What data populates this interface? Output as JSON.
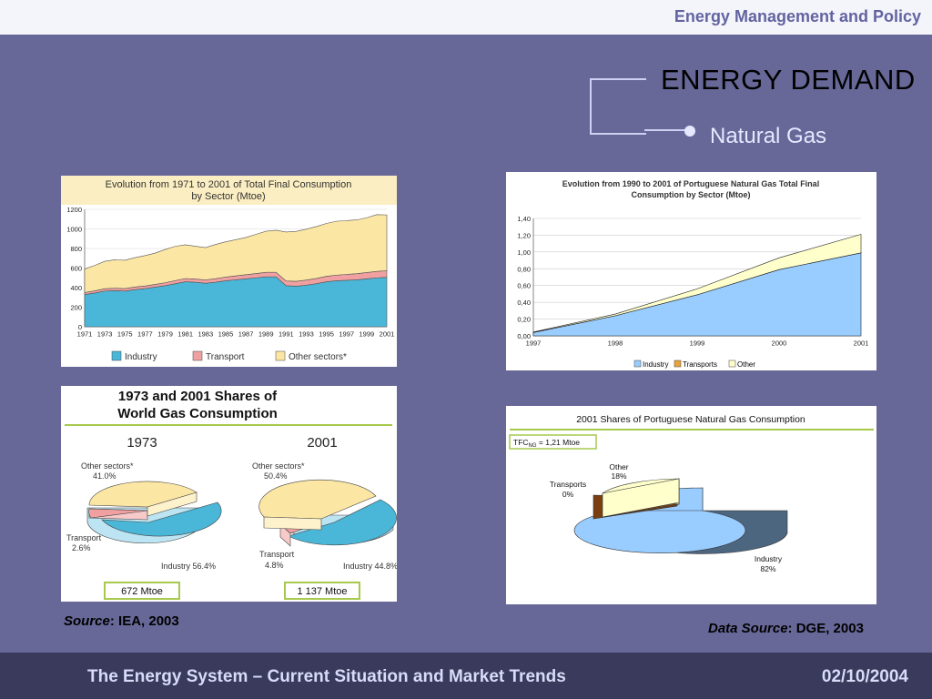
{
  "header": {
    "title": "Energy Management and Policy"
  },
  "slide": {
    "heading": "ENERGY DEMAND",
    "subheading": "Natural Gas"
  },
  "chart1": {
    "title_line1": "Evolution from 1971 to 2001 of  Total Final Consumption",
    "title_line2": "by Sector (Mtoe)",
    "legend": [
      "Industry",
      "Transport",
      "Other sectors*"
    ]
  },
  "chart2": {
    "title_line1": "Evolution from 1990 to 2001 of Portuguese Natural Gas Total Final",
    "title_line2": "Consumption by Sector (Mtoe)",
    "legend": [
      "Industry",
      "Transports",
      "Other"
    ]
  },
  "chart3": {
    "title_line1": "1973 and 2001 Shares of",
    "title_line2": "World Gas Consumption",
    "year_a": "1973",
    "year_b": "2001",
    "a_other": "Other sectors*",
    "a_other_val": "41.0%",
    "a_transport": "Transport",
    "a_transport_val": "2.6%",
    "a_industry": "Industry 56.4%",
    "b_other": "Other sectors*",
    "b_other_val": "50.4%",
    "b_transport": "Transport",
    "b_transport_val": "4.8%",
    "b_industry": "Industry 44.8%",
    "total_a": "672 Mtoe",
    "total_b": "1 137 Mtoe"
  },
  "chart4": {
    "title": "2001  Shares of Portuguese Natural Gas Consumption",
    "tfc_prefix": "TFC",
    "tfc_sub": "NG",
    "tfc_value": " = 1,21 Mtoe",
    "other_label": "Other",
    "other_val": "18%",
    "transports_label": "Transports",
    "transports_val": "0%",
    "industry_label": "Industry",
    "industry_val": "82%"
  },
  "sources": {
    "left_italic": "Source",
    "left_text": ": IEA, 2003",
    "right_italic": "Data Source",
    "right_text": ": DGE, 2003"
  },
  "footer": {
    "left": "The Energy System – Current Situation and Market Trends",
    "right": "02/10/2004"
  },
  "chart_data": [
    {
      "type": "area",
      "title": "Evolution from 1971 to 2001 of  Total Final Consumption by Sector (Mtoe)",
      "x": [
        1971,
        1972,
        1973,
        1974,
        1975,
        1976,
        1977,
        1978,
        1979,
        1980,
        1981,
        1982,
        1983,
        1984,
        1985,
        1986,
        1987,
        1988,
        1989,
        1990,
        1991,
        1992,
        1993,
        1994,
        1995,
        1996,
        1997,
        1998,
        1999,
        2000,
        2001
      ],
      "x_ticks": [
        "1971",
        "1973",
        "1975",
        "1977",
        "1979",
        "1981",
        "1983",
        "1985",
        "1987",
        "1989",
        "1991",
        "1993",
        "1995",
        "1997",
        "1999",
        "2001"
      ],
      "ylim": [
        0,
        1200
      ],
      "y_ticks": [
        "0",
        "200",
        "400",
        "600",
        "800",
        "1000",
        "1200"
      ],
      "series": [
        {
          "name": "Industry",
          "values": [
            330,
            345,
            365,
            370,
            365,
            380,
            390,
            405,
            420,
            440,
            460,
            455,
            445,
            455,
            470,
            480,
            490,
            500,
            510,
            510,
            420,
            415,
            425,
            440,
            460,
            470,
            475,
            480,
            490,
            500,
            505
          ]
        },
        {
          "name": "Transport",
          "values": [
            20,
            22,
            24,
            24,
            25,
            26,
            27,
            28,
            30,
            32,
            33,
            33,
            34,
            36,
            38,
            40,
            42,
            44,
            46,
            47,
            48,
            50,
            52,
            54,
            56,
            58,
            60,
            62,
            64,
            66,
            68
          ]
        },
        {
          "name": "Other sectors*",
          "values": [
            240,
            260,
            280,
            290,
            290,
            300,
            310,
            320,
            340,
            350,
            345,
            335,
            330,
            350,
            360,
            370,
            380,
            400,
            420,
            430,
            500,
            510,
            520,
            530,
            540,
            550,
            550,
            550,
            560,
            580,
            570
          ]
        }
      ],
      "colors": [
        "#4ab6d8",
        "#f0a0a0",
        "#fbe6a4"
      ]
    },
    {
      "type": "area",
      "title": "Evolution from 1990 to 2001 of Portuguese Natural Gas Total Final Consumption by Sector (Mtoe)",
      "x": [
        "1997",
        "1998",
        "1999",
        "2000",
        "2001"
      ],
      "ylim": [
        0,
        1.4
      ],
      "y_ticks": [
        "0,00",
        "0,20",
        "0,40",
        "0,60",
        "0,80",
        "1,00",
        "1,20",
        "1,40"
      ],
      "series": [
        {
          "name": "Industry",
          "values": [
            0.04,
            0.24,
            0.49,
            0.79,
            0.99
          ]
        },
        {
          "name": "Transports",
          "values": [
            0,
            0,
            0,
            0,
            0
          ]
        },
        {
          "name": "Other",
          "values": [
            0.005,
            0.02,
            0.07,
            0.14,
            0.22
          ]
        }
      ],
      "colors": [
        "#99ccff",
        "#e8a33a",
        "#ffffcc"
      ]
    },
    {
      "type": "pie",
      "title": "1973 and 2001 Shares of World Gas Consumption",
      "groups": [
        {
          "name": "1973",
          "labels": [
            "Industry",
            "Transport",
            "Other sectors*"
          ],
          "values": [
            56.4,
            2.6,
            41.0
          ]
        },
        {
          "name": "2001",
          "labels": [
            "Industry",
            "Transport",
            "Other sectors*"
          ],
          "values": [
            44.8,
            4.8,
            50.4
          ]
        }
      ]
    },
    {
      "type": "pie",
      "title": "2001  Shares of Portuguese Natural Gas Consumption",
      "labels": [
        "Industry",
        "Transports",
        "Other"
      ],
      "values": [
        82,
        0,
        18
      ]
    }
  ]
}
